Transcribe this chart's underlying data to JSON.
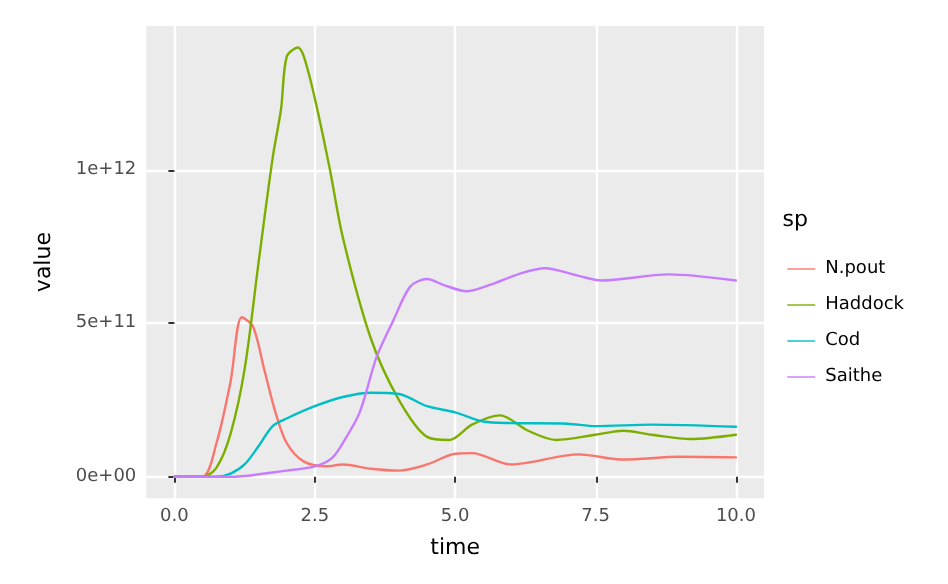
{
  "chart_data": {
    "type": "line",
    "xlabel": "time",
    "ylabel": "value",
    "legend_title": "sp",
    "legend": "right",
    "grid": true,
    "marker": "none",
    "line_style": "solid",
    "xlim": [
      -0.5,
      10.5
    ],
    "xticks": [
      {
        "value": 0,
        "label": "0.0"
      },
      {
        "value": 2.5,
        "label": "2.5"
      },
      {
        "value": 5,
        "label": "5.0"
      },
      {
        "value": 7.5,
        "label": "7.5"
      },
      {
        "value": 10,
        "label": "10.0"
      }
    ],
    "ylim": [
      -70000000000,
      1470000000000
    ],
    "yticks": [
      {
        "value": 0,
        "label": "0e+00"
      },
      {
        "value": 500000000000,
        "label": "5e+11"
      },
      {
        "value": 1000000000000,
        "label": "1e+12"
      }
    ],
    "series": [
      {
        "name": "N.pout",
        "color": "#f8766d",
        "x": [
          0,
          0.5,
          0.75,
          1,
          1.2,
          1.4,
          1.6,
          1.8,
          2,
          2.3,
          2.7,
          3,
          3.5,
          4,
          4.5,
          5,
          5.3,
          6,
          7.2,
          8,
          9,
          10
        ],
        "values": [
          0,
          0,
          110000000000,
          310000000000,
          520000000000,
          490000000000,
          350000000000,
          210000000000,
          110000000000,
          50000000000,
          34000000000,
          40000000000,
          26000000000,
          20000000000,
          40000000000,
          75000000000,
          77000000000,
          40000000000,
          73000000000,
          56000000000,
          65000000000,
          63000000000
        ]
      },
      {
        "name": "Haddock",
        "color": "#7cae00",
        "x": [
          0,
          0.5,
          0.75,
          1,
          1.25,
          1.5,
          1.75,
          1.9,
          2,
          2.2,
          2.4,
          2.75,
          3,
          3.5,
          4,
          4.5,
          4.9,
          5.3,
          5.8,
          6.3,
          6.8,
          7.5,
          8,
          8.5,
          9.2,
          10
        ],
        "values": [
          0,
          0,
          30000000000,
          140000000000,
          350000000000,
          700000000000,
          1040000000000,
          1200000000000,
          1370000000000,
          1400000000000,
          1310000000000,
          1020000000000,
          780000000000,
          450000000000,
          250000000000,
          130000000000,
          120000000000,
          170000000000,
          200000000000,
          150000000000,
          120000000000,
          137000000000,
          150000000000,
          137000000000,
          123000000000,
          137000000000
        ]
      },
      {
        "name": "Cod",
        "color": "#00bfc4",
        "x": [
          0,
          0.75,
          1,
          1.25,
          1.5,
          1.75,
          2,
          2.5,
          3,
          3.5,
          4,
          4.5,
          5,
          5.5,
          6,
          7,
          7.5,
          8.5,
          10
        ],
        "values": [
          0,
          0,
          10000000000,
          40000000000,
          100000000000,
          165000000000,
          190000000000,
          230000000000,
          260000000000,
          274000000000,
          270000000000,
          230000000000,
          210000000000,
          180000000000,
          175000000000,
          173000000000,
          165000000000,
          170000000000,
          163000000000
        ]
      },
      {
        "name": "Saithe",
        "color": "#c77cff",
        "x": [
          0,
          1,
          2,
          2.5,
          2.8,
          3,
          3.3,
          3.6,
          3.9,
          4.2,
          4.5,
          4.8,
          5.2,
          5.6,
          6.2,
          6.6,
          7.2,
          7.6,
          8.8,
          10
        ],
        "values": [
          0,
          0,
          20000000000,
          34000000000,
          60000000000,
          110000000000,
          210000000000,
          390000000000,
          510000000000,
          620000000000,
          645000000000,
          625000000000,
          605000000000,
          625000000000,
          665000000000,
          680000000000,
          655000000000,
          640000000000,
          660000000000,
          640000000000
        ]
      }
    ]
  }
}
